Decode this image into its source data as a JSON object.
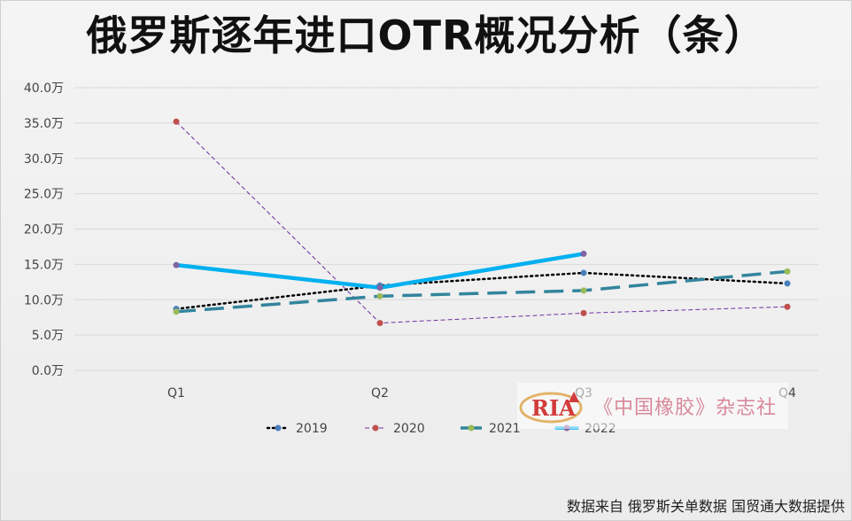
{
  "title": "俄罗斯逐年进口OTR概况分析（条）",
  "source": "数据来自 俄罗斯关单数据 国贸通大数据提供",
  "watermark": {
    "logo_text": "RIA",
    "text": "《中国橡胶》杂志社"
  },
  "chart_data": {
    "type": "line",
    "title": "俄罗斯逐年进口OTR概况分析（条）",
    "categories": [
      "Q1",
      "Q2",
      "Q3",
      "Q4"
    ],
    "y_ticks": [
      "0.0万",
      "5.0万",
      "10.0万",
      "15.0万",
      "20.0万",
      "25.0万",
      "30.0万",
      "35.0万",
      "40.0万"
    ],
    "ylim": [
      0,
      40
    ],
    "y_unit": "万",
    "grid": true,
    "legend_position": "bottom",
    "series": [
      {
        "name": "2019",
        "values": [
          8.7,
          12.0,
          13.8,
          12.3
        ],
        "color": "#000000",
        "marker": "#4a7ebb",
        "style": "dotted"
      },
      {
        "name": "2020",
        "values": [
          35.2,
          6.7,
          8.1,
          9.0
        ],
        "color": "#7030a0",
        "marker": "#c0504d",
        "style": "dashed-thin"
      },
      {
        "name": "2021",
        "values": [
          8.3,
          10.5,
          11.3,
          14.0
        ],
        "color": "#31859c",
        "marker": "#9bbb59",
        "style": "dashed-thick"
      },
      {
        "name": "2022",
        "values": [
          14.9,
          11.7,
          16.5,
          null
        ],
        "color": "#00b0f0",
        "marker": "#8064a2",
        "style": "solid-thick"
      }
    ]
  }
}
